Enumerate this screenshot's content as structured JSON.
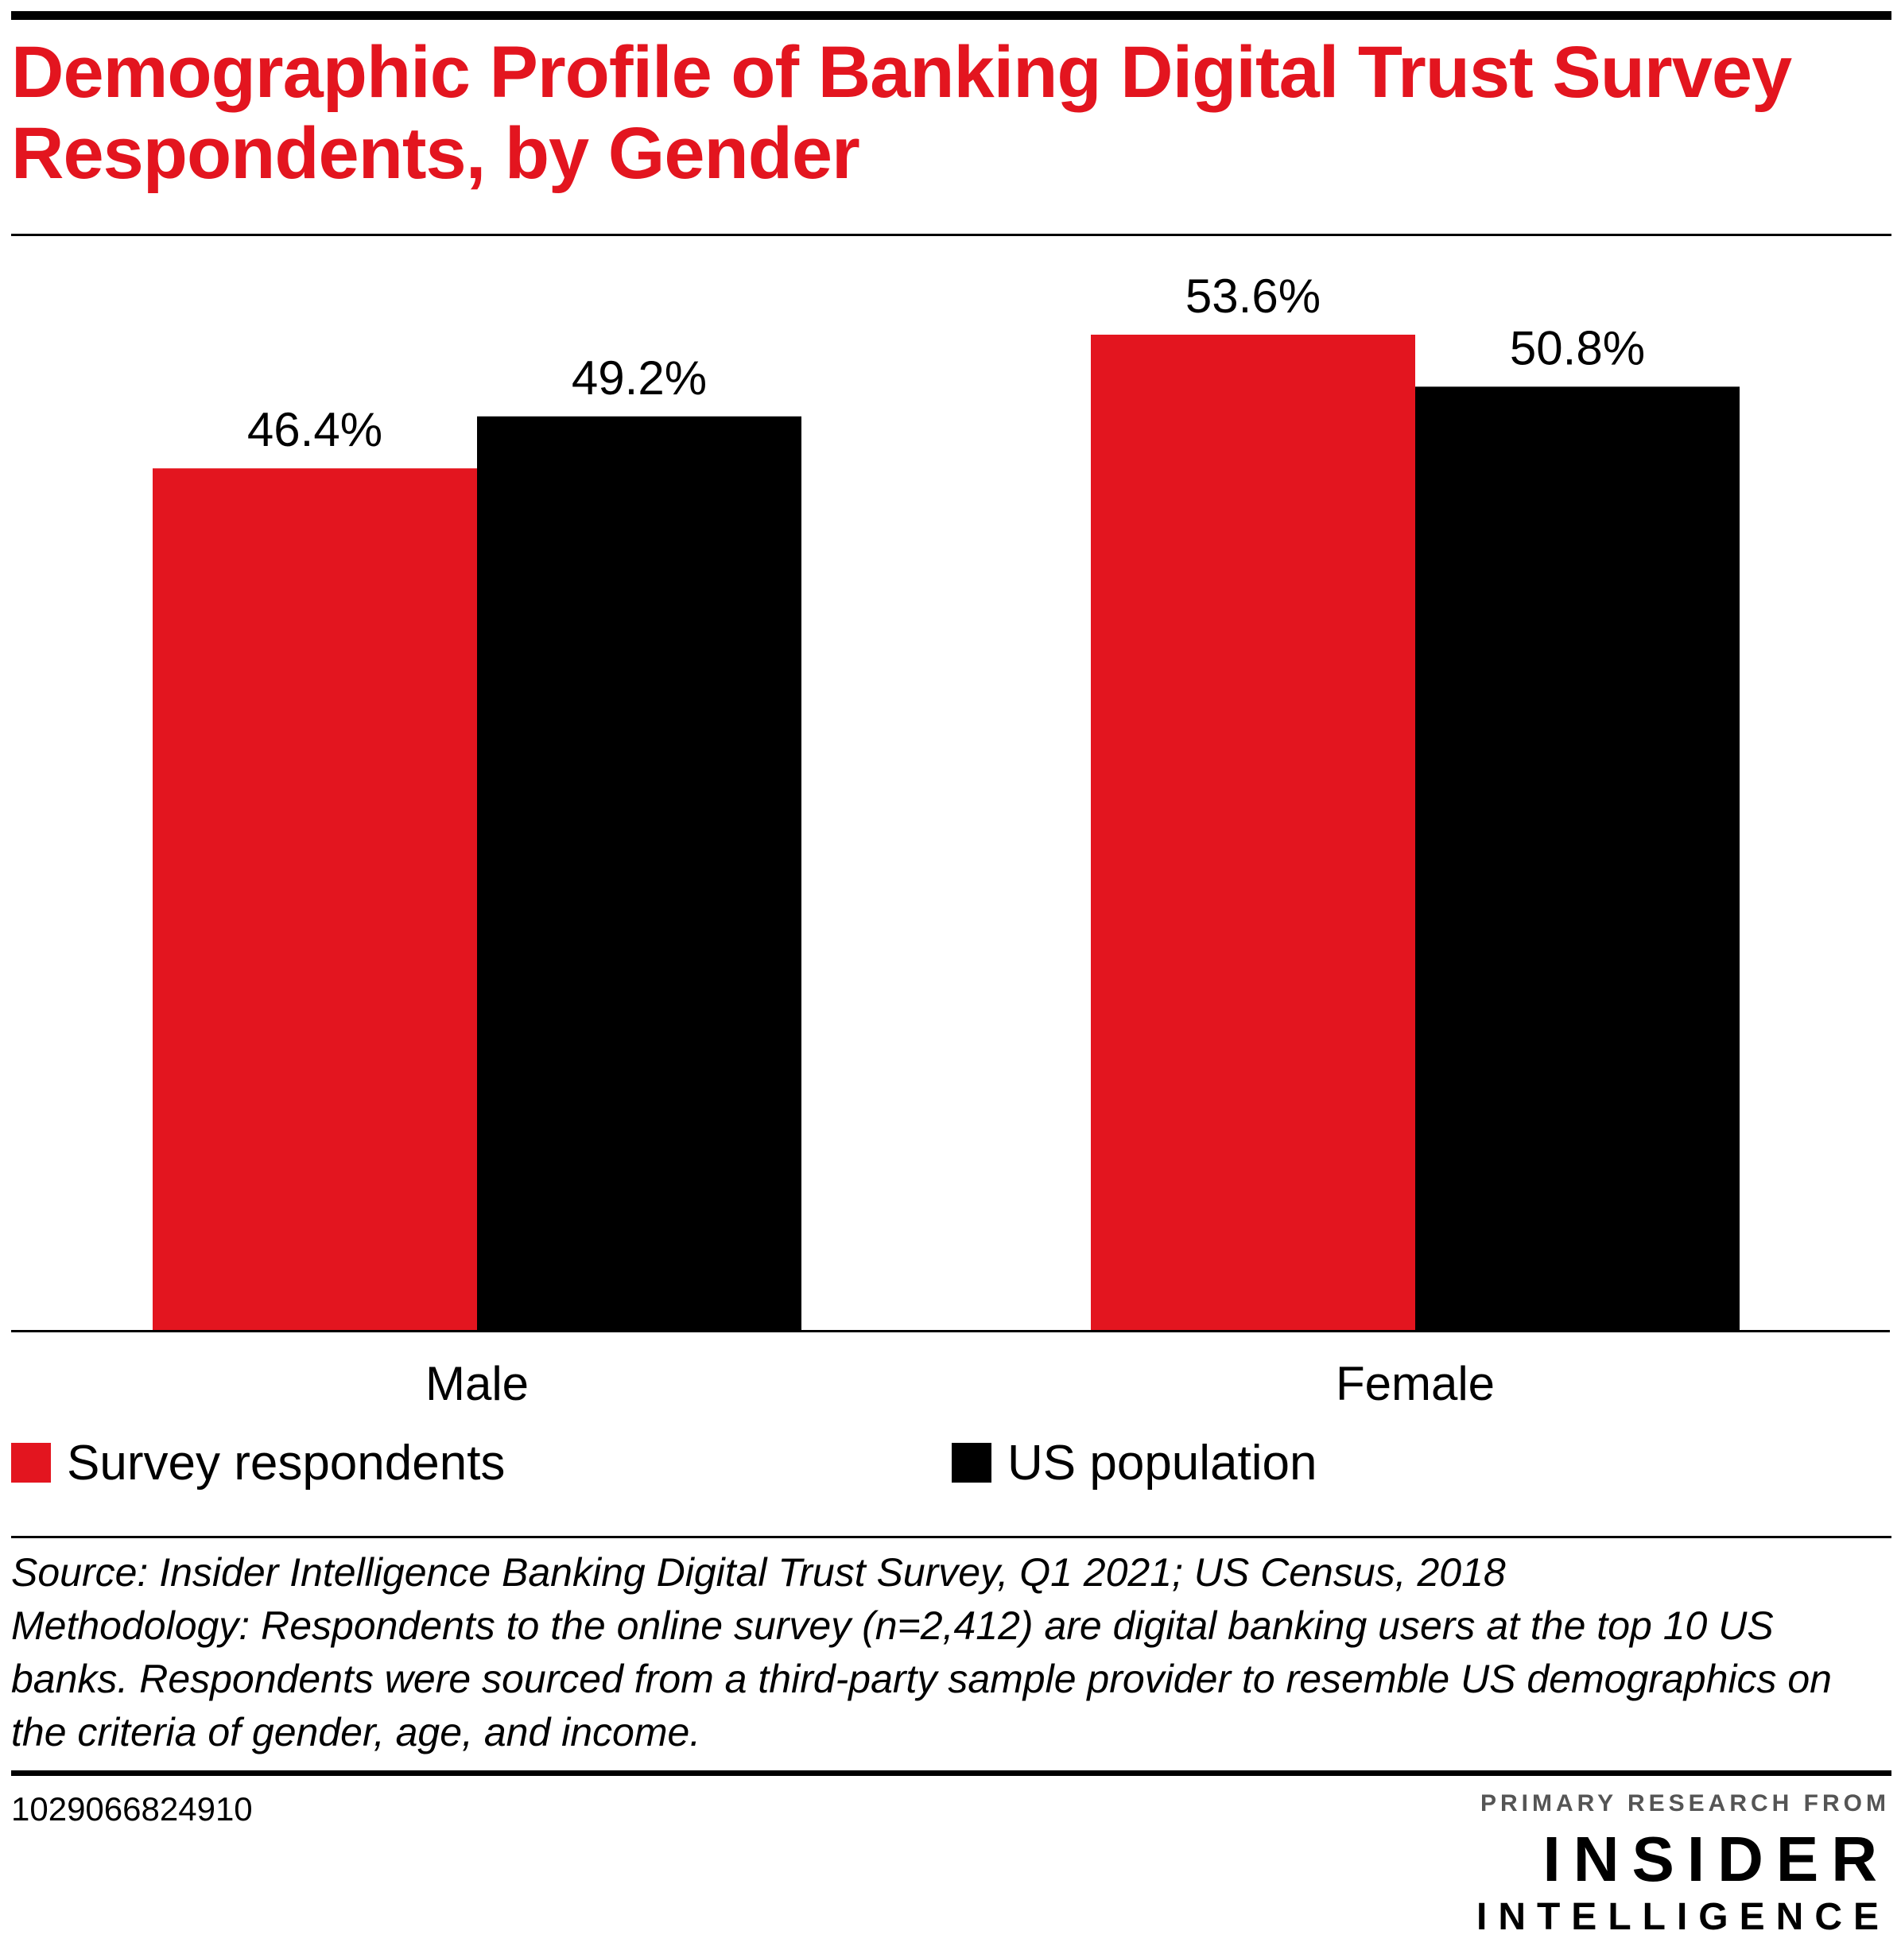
{
  "title": "Demographic Profile of Banking Digital Trust Survey Respondents, by Gender",
  "chart_data": {
    "type": "bar",
    "title": "Demographic Profile of Banking Digital Trust Survey Respondents, by Gender",
    "categories": [
      "Male",
      "Female"
    ],
    "series": [
      {
        "name": "Survey respondents",
        "values": [
          46.4,
          53.6
        ],
        "labels": [
          "46.4%",
          "53.6%"
        ],
        "color": "#e3151f"
      },
      {
        "name": "US population",
        "values": [
          49.2,
          50.8
        ],
        "labels": [
          "49.2%",
          "50.8%"
        ],
        "color": "#000000"
      }
    ],
    "xlabel": "",
    "ylabel": "",
    "ylim": [
      0,
      60
    ],
    "grid": false,
    "legend_position": "bottom"
  },
  "legend": {
    "items": [
      {
        "label": "Survey respondents",
        "color": "#e3151f"
      },
      {
        "label": "US population",
        "color": "#000000"
      }
    ]
  },
  "notes": {
    "source": "Source: Insider Intelligence Banking Digital Trust Survey, Q1 2021; US Census, 2018",
    "methodology": "Methodology: Respondents to the online survey (n=2,412) are digital banking users at the top 10 US banks. Respondents were sourced from a third-party sample provider to resemble US demographics on the criteria of gender, age, and income."
  },
  "footer": {
    "chart_id": "1029066824910",
    "brand_kicker": "PRIMARY RESEARCH FROM",
    "brand_name": "INSIDER",
    "brand_sub": "INTELLIGENCE"
  },
  "colors": {
    "accent": "#e3151f",
    "text": "#000000"
  }
}
